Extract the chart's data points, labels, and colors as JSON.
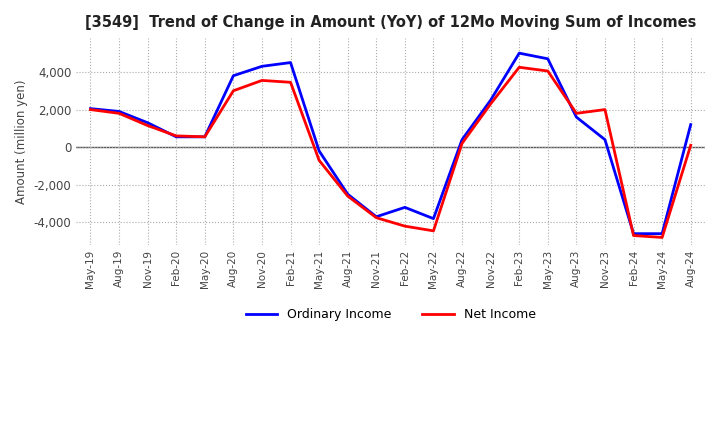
{
  "title": "[3549]  Trend of Change in Amount (YoY) of 12Mo Moving Sum of Incomes",
  "ylabel": "Amount (million yen)",
  "ylim": [
    -5200,
    5800
  ],
  "yticks": [
    -4000,
    -2000,
    0,
    2000,
    4000
  ],
  "x_labels": [
    "May-19",
    "Aug-19",
    "Nov-19",
    "Feb-20",
    "May-20",
    "Aug-20",
    "Nov-20",
    "Feb-21",
    "May-21",
    "Aug-21",
    "Nov-21",
    "Feb-22",
    "May-22",
    "Aug-22",
    "Nov-22",
    "Feb-23",
    "May-23",
    "Aug-23",
    "Nov-23",
    "Feb-24",
    "May-24",
    "Aug-24"
  ],
  "ordinary_income": [
    2050,
    1900,
    1300,
    550,
    550,
    3800,
    4300,
    4500,
    -200,
    -2500,
    -3700,
    -3200,
    -3800,
    400,
    2500,
    5000,
    4700,
    1600,
    400,
    -4600,
    -4600,
    1200
  ],
  "net_income": [
    2000,
    1800,
    1150,
    600,
    550,
    3000,
    3550,
    3450,
    -700,
    -2600,
    -3750,
    -4200,
    -4450,
    200,
    2300,
    4250,
    4050,
    1800,
    2000,
    -4700,
    -4800,
    100
  ],
  "ordinary_color": "#0000FF",
  "net_color": "#FF0000",
  "grid_color": "#AAAAAA",
  "zero_line_color": "#555555",
  "background_color": "#FFFFFF",
  "legend_labels": [
    "Ordinary Income",
    "Net Income"
  ]
}
